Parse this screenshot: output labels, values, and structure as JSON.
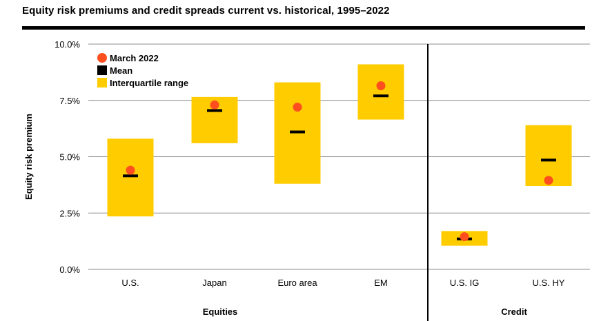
{
  "title": "Equity risk premiums and credit spreads current vs. historical, 1995–2022",
  "chart_data": {
    "type": "range",
    "title": "Equity risk premiums and credit spreads current vs. historical, 1995–2022",
    "ylabel": "Equity risk premium",
    "ylim": [
      0,
      10
    ],
    "yticks": [
      {
        "value": 0,
        "label": "0.0%"
      },
      {
        "value": 2.5,
        "label": "2.5%"
      },
      {
        "value": 5,
        "label": "5.0%"
      },
      {
        "value": 7.5,
        "label": "7.5%"
      },
      {
        "value": 10,
        "label": "10.0%"
      }
    ],
    "categories": [
      "U.S.",
      "Japan",
      "Euro area",
      "EM",
      "U.S. IG",
      "U.S. HY"
    ],
    "groups": [
      {
        "label": "Equities",
        "categories": [
          "U.S.",
          "Japan",
          "Euro area",
          "EM"
        ]
      },
      {
        "label": "Credit",
        "categories": [
          "U.S. IG",
          "U.S. HY"
        ]
      }
    ],
    "series": [
      {
        "name": "Interquartile range",
        "low": [
          2.35,
          5.6,
          3.8,
          6.65,
          1.05,
          3.7
        ],
        "high": [
          5.8,
          7.65,
          8.3,
          9.1,
          1.7,
          6.4
        ]
      },
      {
        "name": "Mean",
        "values": [
          4.15,
          7.05,
          6.1,
          7.7,
          1.35,
          4.85
        ]
      },
      {
        "name": "March 2022",
        "values": [
          4.4,
          7.3,
          7.2,
          8.15,
          1.45,
          3.95
        ]
      }
    ],
    "legend": {
      "position": "top-left",
      "items": [
        {
          "label": "March 2022",
          "marker": "dot",
          "color": "#ff4f1f"
        },
        {
          "label": "Mean",
          "marker": "square",
          "color": "#000000"
        },
        {
          "label": "Interquartile range",
          "marker": "square",
          "color": "#ffcc00"
        }
      ]
    },
    "colors": {
      "range": "#ffcc00",
      "mean": "#000000",
      "current": "#ff4f1f",
      "grid": "#8c8c8c"
    },
    "grid": true
  }
}
